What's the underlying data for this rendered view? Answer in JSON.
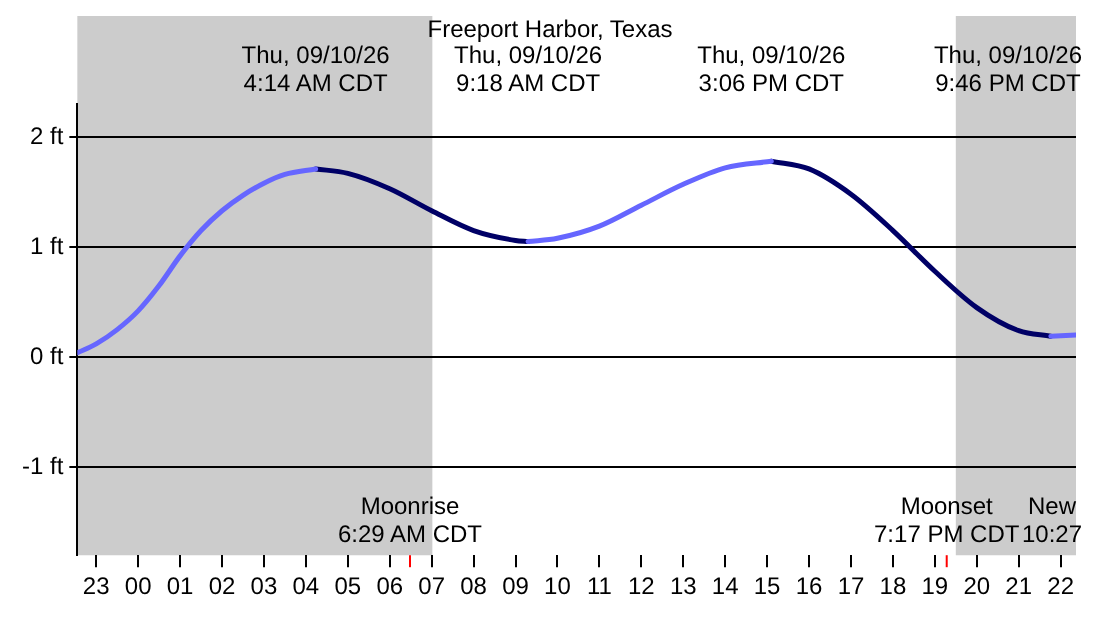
{
  "chart_data": {
    "type": "line",
    "title": "Freeport Harbor, Texas",
    "series": [
      {
        "color": "#6666ff",
        "x": [
          "--09-09T22:33",
          "--09-09T23:00",
          "--09-09T23:30",
          "--09-10T00:00",
          "--09-10T00:30",
          "--09-10T01:00",
          "--09-10T01:30",
          "--09-10T02:00",
          "--09-10T02:30",
          "--09-10T03:00",
          "--09-10T03:30",
          "--09-10T04:14",
          "--09-10T06:30",
          "--09-10T09:18",
          "--09-10T10:00",
          "--09-10T11:00",
          "--09-10T12:00",
          "--09-10T13:00",
          "--09-10T14:00",
          "--09-10T15:06",
          "--09-10T18:00",
          "--09-10T21:46",
          "--09-10T22:22"
        ],
        "values": [
          0.04,
          0.12,
          0.25,
          0.42,
          0.65,
          0.92,
          1.15,
          1.33,
          1.47,
          1.58,
          1.66,
          1.71,
          null,
          1.05,
          1.08,
          1.19,
          1.38,
          1.57,
          1.72,
          1.78,
          null,
          0.19,
          0.2
        ]
      },
      {
        "color": "#000066",
        "x": [
          "--09-10T04:14",
          "--09-10T05:00",
          "--09-10T06:00",
          "--09-10T07:00",
          "--09-10T08:00",
          "--09-10T09:00",
          "--09-10T09:18",
          "--09-10T12:00",
          "--09-10T15:06",
          "--09-10T16:00",
          "--09-10T17:00",
          "--09-10T18:00",
          "--09-10T19:00",
          "--09-10T20:00",
          "--09-10T21:00",
          "--09-10T21:46"
        ],
        "values": [
          1.71,
          1.67,
          1.53,
          1.33,
          1.15,
          1.06,
          1.05,
          null,
          1.78,
          1.71,
          1.48,
          1.15,
          0.78,
          0.45,
          0.24,
          0.19
        ]
      }
    ],
    "xlim": [
      "--09-09T22:33",
      "--09-10T22:22"
    ],
    "xticks": [
      {
        "value": "--09-09T23:00",
        "label": "23"
      },
      {
        "value": "--09-10T00:00",
        "label": "00"
      },
      {
        "value": "--09-10T01:00",
        "label": "01"
      },
      {
        "value": "--09-10T02:00",
        "label": "02"
      },
      {
        "value": "--09-10T03:00",
        "label": "03"
      },
      {
        "value": "--09-10T04:00",
        "label": "04"
      },
      {
        "value": "--09-10T05:00",
        "label": "05"
      },
      {
        "value": "--09-10T06:00",
        "label": "06"
      },
      {
        "value": "--09-10T07:00",
        "label": "07"
      },
      {
        "value": "--09-10T08:00",
        "label": "08"
      },
      {
        "value": "--09-10T09:00",
        "label": "09"
      },
      {
        "value": "--09-10T10:00",
        "label": "10"
      },
      {
        "value": "--09-10T11:00",
        "label": "11"
      },
      {
        "value": "--09-10T12:00",
        "label": "12"
      },
      {
        "value": "--09-10T13:00",
        "label": "13"
      },
      {
        "value": "--09-10T14:00",
        "label": "14"
      },
      {
        "value": "--09-10T15:00",
        "label": "15"
      },
      {
        "value": "--09-10T16:00",
        "label": "16"
      },
      {
        "value": "--09-10T17:00",
        "label": "17"
      },
      {
        "value": "--09-10T18:00",
        "label": "18"
      },
      {
        "value": "--09-10T19:00",
        "label": "19"
      },
      {
        "value": "--09-10T20:00",
        "label": "20"
      },
      {
        "value": "--09-10T21:00",
        "label": "21"
      },
      {
        "value": "--09-10T22:00",
        "label": "22"
      }
    ],
    "ylim": [
      -1.8,
      2.3
    ],
    "yticks": [
      {
        "value": -1,
        "label": "-1 ft"
      },
      {
        "value": 0,
        "label": "0 ft"
      },
      {
        "value": 1,
        "label": "1 ft"
      },
      {
        "value": 2,
        "label": "2 ft"
      }
    ],
    "grid": "y",
    "legend": false,
    "marker": "none",
    "line_style": "solid",
    "bands": [
      {
        "axis": "x",
        "from": "--09-09T22:33",
        "to": "--09-10T07:01",
        "color": "#cccccc"
      },
      {
        "axis": "x",
        "from": "--09-10T19:30",
        "to": "--09-10T22:22",
        "color": "#cccccc"
      }
    ],
    "ref_lines": [
      {
        "axis": "x",
        "value": "--09-10T06:29",
        "label": "Moonrise\n6:29 AM CDT",
        "color": "#ff0000"
      },
      {
        "axis": "x",
        "value": "--09-10T19:17",
        "label": "Moonset\n7:17 PM CDT",
        "color": "#ff0000"
      }
    ],
    "annotations": [
      "Thu, 09/10/26\n4:14 AM CDT",
      "Thu, 09/10/26\n9:18 AM CDT",
      "Thu, 09/10/26\n3:06 PM CDT",
      "Thu, 09/10/26\n9:46 PM CDT",
      "New\n10:27"
    ]
  }
}
